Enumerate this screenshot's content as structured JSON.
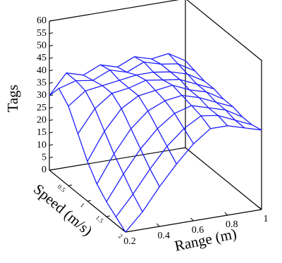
{
  "chart_data": {
    "type": "surface",
    "xlabel": "Range (m)",
    "ylabel": "Speed (m/s)",
    "zlabel": "Tags",
    "x": [
      0.2,
      0.3,
      0.4,
      0.5,
      0.6,
      0.7,
      0.8,
      0.9,
      1.0
    ],
    "y": [
      0,
      0.25,
      0.5,
      0.75,
      1,
      1.25,
      1.5,
      1.75,
      2
    ],
    "z": [
      [
        30,
        38,
        36,
        39,
        37,
        40,
        38,
        39,
        35
      ],
      [
        36,
        38,
        37,
        40,
        38,
        41,
        39,
        38,
        34
      ],
      [
        32,
        37,
        38,
        39,
        40,
        40,
        39,
        37,
        33
      ],
      [
        24,
        33,
        38,
        39,
        41,
        40,
        39,
        36,
        33
      ],
      [
        16,
        27,
        35,
        39,
        40,
        41,
        38,
        36,
        32
      ],
      [
        10,
        21,
        30,
        36,
        39,
        40,
        38,
        35,
        32
      ],
      [
        6,
        16,
        25,
        32,
        37,
        39,
        37,
        35,
        31
      ],
      [
        3,
        11,
        20,
        28,
        34,
        38,
        37,
        34,
        31
      ],
      [
        0,
        7,
        16,
        24,
        31,
        36,
        36,
        34,
        32
      ]
    ],
    "color": "#1f1fff",
    "xlim": [
      0.2,
      1
    ],
    "xticks": [
      0.2,
      0.4,
      0.6,
      0.8,
      1
    ],
    "ylim": [
      0,
      2
    ],
    "yticks": [
      0.5,
      1,
      1.5,
      2
    ],
    "zlim": [
      0,
      60
    ],
    "zticks": [
      0,
      5,
      10,
      15,
      20,
      25,
      30,
      35,
      40,
      45,
      50,
      55,
      60
    ]
  }
}
